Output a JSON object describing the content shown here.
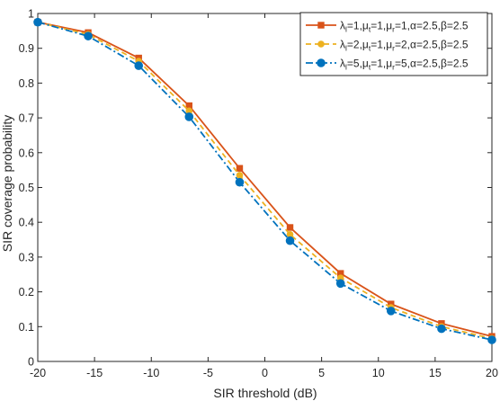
{
  "chart_data": {
    "type": "line",
    "title": "",
    "xlabel": "SIR threshold (dB)",
    "ylabel": "SIR coverage probability",
    "xlim": [
      -20,
      20
    ],
    "ylim": [
      0,
      1
    ],
    "xticks": [
      -20,
      -15,
      -10,
      -5,
      0,
      5,
      10,
      15,
      20
    ],
    "yticks": [
      0,
      0.1,
      0.2,
      0.3,
      0.4,
      0.5,
      0.6,
      0.7,
      0.8,
      0.9,
      1
    ],
    "grid": false,
    "box": true,
    "legend_position": "top-right",
    "x": [
      -20,
      -15.56,
      -11.11,
      -6.67,
      -2.22,
      2.22,
      6.67,
      11.11,
      15.56,
      20
    ],
    "series": [
      {
        "name": "λl=1,μt=1,μr=1,α=2.5,β=2.5",
        "legend_parts": [
          {
            "t": "λ"
          },
          {
            "t": "l",
            "sub": true
          },
          {
            "t": "=1,"
          },
          {
            "t": "μ"
          },
          {
            "t": "t",
            "sub": true
          },
          {
            "t": "=1,"
          },
          {
            "t": "μ"
          },
          {
            "t": "r",
            "sub": true
          },
          {
            "t": "=1,α=2.5,β=2.5"
          }
        ],
        "color": "#D95319",
        "dash": "solid",
        "marker": "square",
        "values": [
          0.975,
          0.945,
          0.872,
          0.735,
          0.555,
          0.385,
          0.253,
          0.165,
          0.109,
          0.072
        ]
      },
      {
        "name": "λl=2,μt=1,μr=2,α=2.5,β=2.5",
        "legend_parts": [
          {
            "t": "λ"
          },
          {
            "t": "l",
            "sub": true
          },
          {
            "t": "=2,"
          },
          {
            "t": "μ"
          },
          {
            "t": "t",
            "sub": true
          },
          {
            "t": "=1,"
          },
          {
            "t": "μ"
          },
          {
            "t": "r",
            "sub": true
          },
          {
            "t": "=2,α=2.5,β=2.5"
          }
        ],
        "color": "#EDB120",
        "dash": "dashed",
        "marker": "circle",
        "values": [
          0.975,
          0.94,
          0.863,
          0.72,
          0.535,
          0.365,
          0.24,
          0.155,
          0.1,
          0.066
        ]
      },
      {
        "name": "λl=5,μt=1,μr=5,α=2.5,β=2.5",
        "legend_parts": [
          {
            "t": "λ"
          },
          {
            "t": "l",
            "sub": true
          },
          {
            "t": "=5,"
          },
          {
            "t": "μ"
          },
          {
            "t": "t",
            "sub": true
          },
          {
            "t": "=1,"
          },
          {
            "t": "μ"
          },
          {
            "t": "r",
            "sub": true
          },
          {
            "t": "=5,α=2.5,β=2.5"
          }
        ],
        "color": "#0072BD",
        "dash": "dashdot",
        "marker": "circle",
        "values": [
          0.975,
          0.935,
          0.85,
          0.703,
          0.515,
          0.347,
          0.224,
          0.145,
          0.094,
          0.062
        ]
      }
    ]
  }
}
